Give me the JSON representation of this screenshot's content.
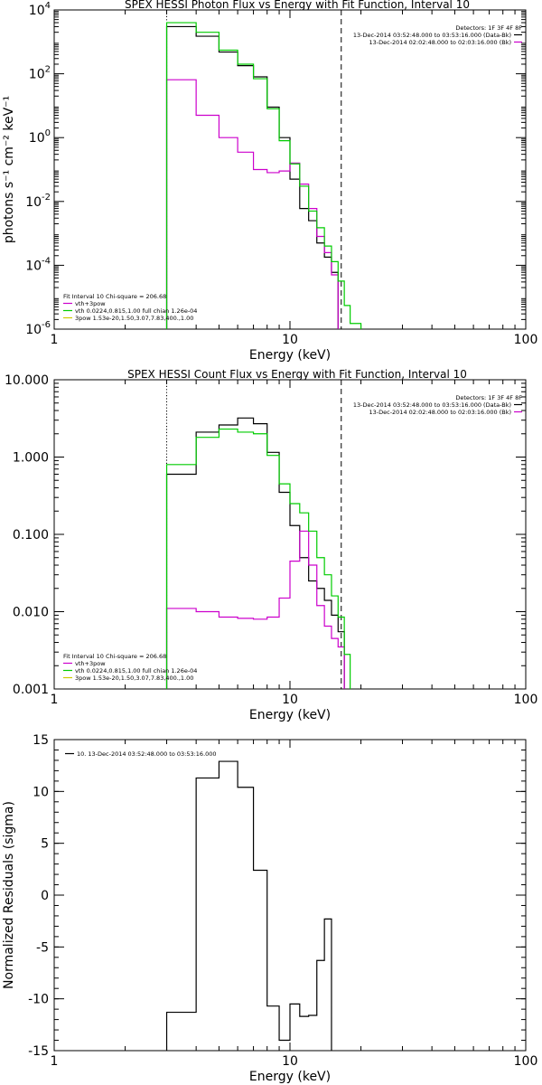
{
  "chart_data": [
    {
      "type": "line",
      "title": "SPEX HESSI Photon Flux vs Energy with Fit Function, Interval 10",
      "xlabel": "Energy (keV)",
      "ylabel": "photons s⁻¹ cm⁻² keV⁻¹",
      "xscale": "log",
      "yscale": "log",
      "xlim": [
        1,
        100
      ],
      "ylim": [
        1e-06,
        10000
      ],
      "xticks": [
        {
          "v": 1,
          "label": "1"
        },
        {
          "v": 10,
          "label": "10"
        },
        {
          "v": 100,
          "label": "100"
        }
      ],
      "yticks": [
        {
          "v": 10000,
          "m": "10",
          "e": "4"
        },
        {
          "v": 100,
          "m": "10",
          "e": "2"
        },
        {
          "v": 1,
          "m": "10",
          "e": "0"
        },
        {
          "v": 0.01,
          "m": "10",
          "e": "-2"
        },
        {
          "v": 0.0001,
          "m": "10",
          "e": "-4"
        },
        {
          "v": 1e-06,
          "m": "10",
          "e": "-6"
        }
      ],
      "vlines": [
        {
          "x": 3.0,
          "style": "dotted"
        },
        {
          "x": 16.5,
          "style": "dashed"
        }
      ],
      "legend_topright": {
        "lines": [
          "Detectors: 1F 3F 4F 8F",
          "13-Dec-2014 03:52:48.000 to 03:53:16.000 (Data-Bk)",
          "13-Dec-2014 02:02:48.000 to 02:03:16.000 (Bk)"
        ],
        "colors": [
          "",
          "#000000",
          "#cc00cc"
        ]
      },
      "legend_bottomleft": {
        "lines": [
          "Fit Interval 10   Chi-square = 206.68",
          "vth+3pow",
          "vth 0.0224,0.815,1.00  full chian 1.26e-04",
          "3pow 1.53e-20,1.50,3.07,7.83,400.,1.00"
        ],
        "colors": [
          "",
          "#cc00cc",
          "#00cc00",
          "#cccc00"
        ]
      },
      "edges": [
        3,
        4,
        5,
        6,
        7,
        8,
        9,
        10,
        11,
        12,
        13,
        14,
        15,
        16,
        17,
        18,
        20
      ],
      "series": [
        {
          "color": "#000000",
          "values": [
            3000,
            1500,
            480,
            180,
            80,
            9,
            1.0,
            0.05,
            0.006,
            0.0025,
            0.0005,
            0.00018,
            6e-05,
            null,
            null,
            null
          ]
        },
        {
          "color": "#cc00cc",
          "values": [
            65,
            5.0,
            1.0,
            0.35,
            0.1,
            0.08,
            0.09,
            0.16,
            0.035,
            0.006,
            0.0008,
            0.00025,
            5e-05,
            null,
            null,
            null
          ]
        },
        {
          "color": "#00cc00",
          "values": [
            4000,
            2000,
            550,
            200,
            70,
            8,
            0.8,
            0.15,
            0.03,
            0.005,
            0.0015,
            0.0004,
            0.00013,
            3.2e-05,
            5.5e-06,
            1.5e-06
          ]
        }
      ]
    },
    {
      "type": "line",
      "title": "SPEX HESSI Count Flux vs Energy with Fit Function, Interval 10",
      "xlabel": "Energy (keV)",
      "ylabel": "",
      "xscale": "log",
      "yscale": "log",
      "xlim": [
        1,
        100
      ],
      "ylim": [
        0.001,
        10
      ],
      "xticks": [
        {
          "v": 1,
          "label": "1"
        },
        {
          "v": 10,
          "label": "10"
        },
        {
          "v": 100,
          "label": "100"
        }
      ],
      "yticks": [
        {
          "v": 10,
          "label": "10.000"
        },
        {
          "v": 1,
          "label": "1.000"
        },
        {
          "v": 0.1,
          "label": "0.100"
        },
        {
          "v": 0.01,
          "label": "0.010"
        },
        {
          "v": 0.001,
          "label": "0.001"
        }
      ],
      "vlines": [
        {
          "x": 3.0,
          "style": "dotted"
        },
        {
          "x": 16.5,
          "style": "dashed"
        }
      ],
      "legend_topright": {
        "lines": [
          "Detectors: 1F 3F 4F 8F",
          "13-Dec-2014 03:52:48.000 to 03:53:16.000 (Data-Bk)",
          "13-Dec-2014 02:02:48.000 to 02:03:16.000 (Bk)"
        ],
        "colors": [
          "",
          "#000000",
          "#cc00cc"
        ]
      },
      "legend_bottomleft": {
        "lines": [
          "Fit Interval 10   Chi-square = 206.68",
          "vth+3pow",
          "vth 0.0224,0.815,1.00  full chian 1.26e-04",
          "3pow 1.53e-20,1.50,3.07,7.83,400.,1.00"
        ],
        "colors": [
          "",
          "#cc00cc",
          "#00cc00",
          "#cccc00"
        ]
      },
      "edges": [
        3,
        4,
        5,
        6,
        7,
        8,
        9,
        10,
        11,
        12,
        13,
        14,
        15,
        16,
        17,
        18
      ],
      "series": [
        {
          "color": "#000000",
          "values": [
            0.6,
            2.1,
            2.6,
            3.2,
            2.7,
            1.15,
            0.35,
            0.13,
            0.05,
            0.025,
            0.02,
            0.014,
            0.009,
            0.0055,
            null
          ]
        },
        {
          "color": "#cc00cc",
          "values": [
            0.011,
            0.01,
            0.0085,
            0.0082,
            0.008,
            0.0085,
            0.015,
            0.045,
            0.11,
            0.04,
            0.012,
            0.0065,
            0.0045,
            0.0035,
            null
          ]
        },
        {
          "color": "#00cc00",
          "values": [
            0.8,
            1.8,
            2.3,
            2.1,
            2.0,
            1.05,
            0.45,
            0.25,
            0.19,
            0.11,
            0.05,
            0.03,
            0.016,
            0.0085,
            0.0028
          ]
        }
      ]
    },
    {
      "type": "line",
      "title": "",
      "xlabel": "Energy (keV)",
      "ylabel": "Normalized Residuals (sigma)",
      "xscale": "log",
      "yscale": "linear",
      "xlim": [
        1,
        100
      ],
      "ylim": [
        -15,
        15
      ],
      "xticks": [
        {
          "v": 1,
          "label": "1"
        },
        {
          "v": 10,
          "label": "10"
        },
        {
          "v": 100,
          "label": "100"
        }
      ],
      "yticks": [
        {
          "v": 15,
          "label": "15"
        },
        {
          "v": 10,
          "label": "10"
        },
        {
          "v": 5,
          "label": "5"
        },
        {
          "v": 0,
          "label": "0"
        },
        {
          "v": -5,
          "label": "-5"
        },
        {
          "v": -10,
          "label": "-10"
        },
        {
          "v": -15,
          "label": "-15"
        }
      ],
      "legend_topleft": {
        "lines": [
          "10. 13-Dec-2014 03:52:48.000 to 03:53:16.000"
        ],
        "colors": [
          "#000000"
        ]
      },
      "edges": [
        3,
        4,
        5,
        6,
        7,
        8,
        9,
        10,
        11,
        12,
        13,
        14,
        15,
        16
      ],
      "series": [
        {
          "color": "#000000",
          "values": [
            -11.3,
            11.3,
            12.9,
            10.4,
            2.4,
            -10.7,
            -14.0,
            -10.5,
            -11.7,
            -11.6,
            -6.3,
            -2.3,
            null
          ]
        }
      ]
    }
  ]
}
